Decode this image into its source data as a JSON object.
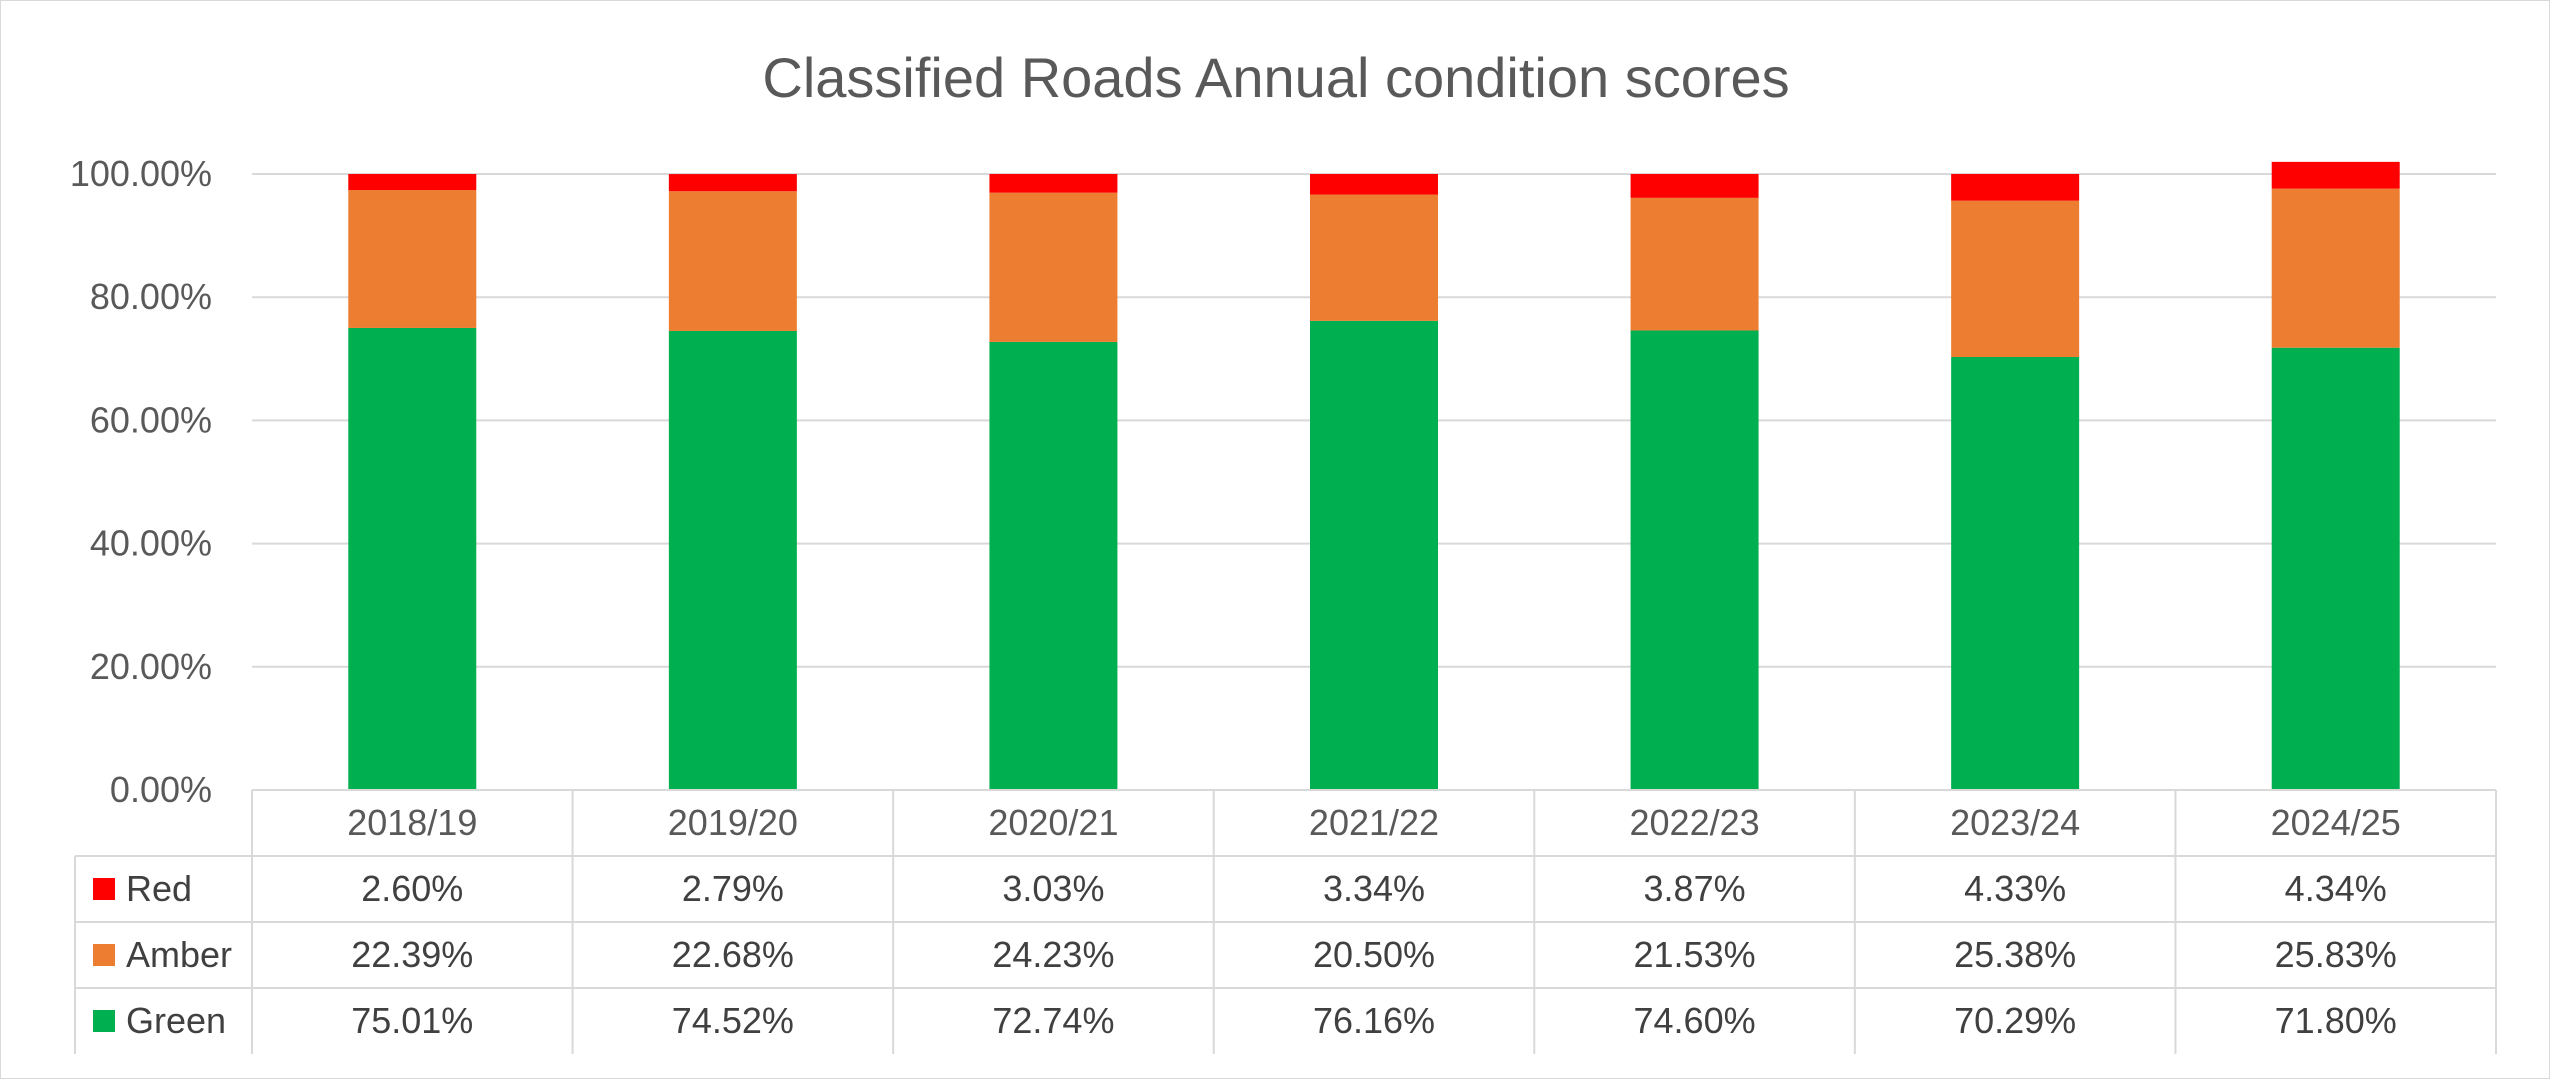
{
  "chart_data": {
    "type": "bar",
    "stacked": true,
    "title": "Classified Roads Annual condition scores",
    "xlabel": "",
    "ylabel": "",
    "ylim": [
      0,
      100
    ],
    "ytick_values": [
      0,
      20,
      40,
      60,
      80,
      100
    ],
    "ytick_labels": [
      "0.00%",
      "20.00%",
      "40.00%",
      "60.00%",
      "80.00%",
      "100.00%"
    ],
    "grid": true,
    "legend": "data-table",
    "categories": [
      "2018/19",
      "2019/20",
      "2020/21",
      "2021/22",
      "2022/23",
      "2023/24",
      "2024/25"
    ],
    "series": [
      {
        "name": "Green",
        "color": "#00b050",
        "values": [
          75.01,
          74.52,
          72.74,
          76.16,
          74.6,
          70.29,
          71.8
        ],
        "labels": [
          "75.01%",
          "74.52%",
          "72.74%",
          "76.16%",
          "74.60%",
          "70.29%",
          "71.80%"
        ]
      },
      {
        "name": "Amber",
        "color": "#ed7d31",
        "values": [
          22.39,
          22.68,
          24.23,
          20.5,
          21.53,
          25.38,
          25.83
        ],
        "labels": [
          "22.39%",
          "22.68%",
          "24.23%",
          "20.50%",
          "21.53%",
          "25.38%",
          "25.83%"
        ]
      },
      {
        "name": "Red",
        "color": "#ff0000",
        "values": [
          2.6,
          2.79,
          3.03,
          3.34,
          3.87,
          4.33,
          4.34
        ],
        "labels": [
          "2.60%",
          "2.79%",
          "3.03%",
          "3.34%",
          "3.87%",
          "4.33%",
          "4.34%"
        ]
      }
    ],
    "table_row_order": [
      "Red",
      "Amber",
      "Green"
    ]
  },
  "colors": {
    "gridline": "#d9d9d9",
    "table_border": "#d9d9d9",
    "text": "#595959"
  }
}
